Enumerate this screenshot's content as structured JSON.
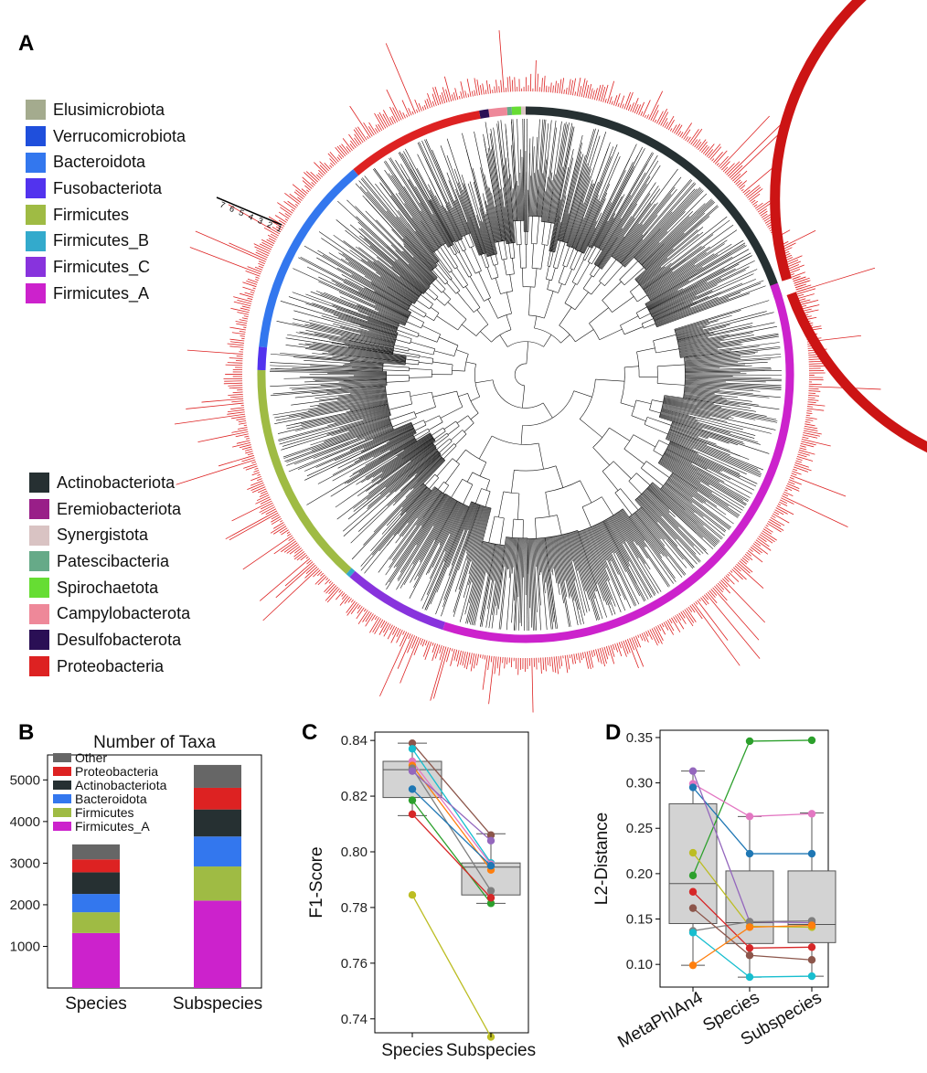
{
  "panel_letters": {
    "a": "A",
    "b": "B",
    "c": "C",
    "d": "D"
  },
  "legend_top": [
    {
      "label": "Elusimicrobiota",
      "color": "#a4ab8e"
    },
    {
      "label": "Verrucomicrobiota",
      "color": "#1f4fdc"
    },
    {
      "label": "Bacteroidota",
      "color": "#3377ee"
    },
    {
      "label": "Fusobacteriota",
      "color": "#5233ee"
    },
    {
      "label": "Firmicutes",
      "color": "#9fbb44"
    },
    {
      "label": "Firmicutes_B",
      "color": "#33aacc"
    },
    {
      "label": "Firmicutes_C",
      "color": "#8833dd"
    },
    {
      "label": "Firmicutes_A",
      "color": "#cc22cc"
    }
  ],
  "legend_bottom": [
    {
      "label": "Actinobacteriota",
      "color": "#263032"
    },
    {
      "label": "Eremiobacteriota",
      "color": "#991f88"
    },
    {
      "label": "Synergistota",
      "color": "#d9c3c3"
    },
    {
      "label": "Patescibacteria",
      "color": "#66aa88"
    },
    {
      "label": "Spirochaetota",
      "color": "#66dd33"
    },
    {
      "label": "Campylobacterota",
      "color": "#ee8899"
    },
    {
      "label": "Desulfobacterota",
      "color": "#2a0f55"
    },
    {
      "label": "Proteobacteria",
      "color": "#dd2222"
    }
  ],
  "tree_scale_ticks": [
    "7",
    "6",
    "5",
    "4",
    "3",
    "2",
    "1"
  ],
  "ring_segments": [
    {
      "phylum": "Actinobacteriota",
      "color": "#263032",
      "start_deg": 17,
      "end_deg": 90
    },
    {
      "phylum": "Synergistota",
      "color": "#d9c3c3",
      "start_deg": 90,
      "end_deg": 91
    },
    {
      "phylum": "Spirochaetota",
      "color": "#66dd33",
      "start_deg": 91,
      "end_deg": 93
    },
    {
      "phylum": "Patescibacteria",
      "color": "#66aa88",
      "start_deg": 93,
      "end_deg": 94
    },
    {
      "phylum": "Campylobacterota",
      "color": "#ee8899",
      "start_deg": 94,
      "end_deg": 98
    },
    {
      "phylum": "Desulfobacterota",
      "color": "#2a0f55",
      "start_deg": 98,
      "end_deg": 100
    },
    {
      "phylum": "Proteobacteria",
      "color": "#dd2222",
      "start_deg": 100,
      "end_deg": 130
    },
    {
      "phylum": "Bacteroidota",
      "color": "#3377ee",
      "start_deg": 130,
      "end_deg": 174
    },
    {
      "phylum": "Fusobacteriota",
      "color": "#5233ee",
      "start_deg": 174,
      "end_deg": 179
    },
    {
      "phylum": "Firmicutes",
      "color": "#9fbb44",
      "start_deg": 179,
      "end_deg": 228
    },
    {
      "phylum": "Firmicutes_B",
      "color": "#33aacc",
      "start_deg": 228,
      "end_deg": 229
    },
    {
      "phylum": "Firmicutes_C",
      "color": "#8833dd",
      "start_deg": 229,
      "end_deg": 252
    },
    {
      "phylum": "Firmicutes_A",
      "color": "#cc22cc",
      "start_deg": 252,
      "end_deg": 380
    }
  ],
  "chart_data": [
    {
      "panel": "B",
      "type": "bar",
      "stacked": true,
      "title": "Number of Taxa",
      "categories": [
        "Species",
        "Subspecies"
      ],
      "series": [
        {
          "name": "Firmicutes_A",
          "color": "#cc22cc",
          "values": [
            1320,
            2100
          ]
        },
        {
          "name": "Firmicutes",
          "color": "#9fbb44",
          "values": [
            500,
            820
          ]
        },
        {
          "name": "Bacteroidota",
          "color": "#3377ee",
          "values": [
            440,
            720
          ]
        },
        {
          "name": "Actinobacteriota",
          "color": "#263032",
          "values": [
            520,
            650
          ]
        },
        {
          "name": "Proteobacteria",
          "color": "#dd2222",
          "values": [
            310,
            520
          ]
        },
        {
          "name": "Other",
          "color": "#666666",
          "values": [
            360,
            550
          ]
        }
      ],
      "yticks": [
        1000,
        2000,
        3000,
        4000,
        5000
      ],
      "ylim": [
        0,
        5600
      ],
      "legend_position": "top-left"
    },
    {
      "panel": "C",
      "type": "box",
      "ylabel": "F1-Score",
      "categories": [
        "Species",
        "Subspecies"
      ],
      "yticks": [
        "0.74",
        "0.76",
        "0.78",
        "0.80",
        "0.82",
        "0.84"
      ],
      "ylim": [
        0.735,
        0.843
      ],
      "box_stats": [
        {
          "category": "Species",
          "min": 0.813,
          "q1": 0.8195,
          "median": 0.8295,
          "q3": 0.8325,
          "max": 0.839
        },
        {
          "category": "Subspecies",
          "min": 0.7815,
          "q1": 0.7845,
          "median": 0.7945,
          "q3": 0.796,
          "max": 0.8065
        }
      ],
      "series": [
        {
          "color": "#8c564b",
          "values": [
            0.839,
            0.806
          ]
        },
        {
          "color": "#17becf",
          "values": [
            0.837,
            0.796
          ]
        },
        {
          "color": "#e377c2",
          "values": [
            0.8325,
            0.7955
          ]
        },
        {
          "color": "#ff7f0e",
          "values": [
            0.831,
            0.7935
          ]
        },
        {
          "color": "#7f7f7f",
          "values": [
            0.83,
            0.786
          ]
        },
        {
          "color": "#9467bd",
          "values": [
            0.829,
            0.804
          ]
        },
        {
          "color": "#1f77b4",
          "values": [
            0.8225,
            0.795
          ]
        },
        {
          "color": "#2ca02c",
          "values": [
            0.8185,
            0.7815
          ]
        },
        {
          "color": "#d62728",
          "values": [
            0.8135,
            0.7835
          ]
        },
        {
          "color": "#bcbd22",
          "values": [
            0.7845,
            0.7335
          ]
        }
      ]
    },
    {
      "panel": "D",
      "type": "box",
      "ylabel": "L2-Distance",
      "categories": [
        "MetaPhlAn4",
        "Species",
        "Subspecies"
      ],
      "yticks": [
        "0.10",
        "0.15",
        "0.20",
        "0.25",
        "0.30",
        "0.35"
      ],
      "ylim": [
        0.075,
        0.358
      ],
      "box_stats": [
        {
          "category": "MetaPhlAn4",
          "min": 0.099,
          "q1": 0.145,
          "median": 0.189,
          "q3": 0.277,
          "max": 0.313
        },
        {
          "category": "Species",
          "min": 0.086,
          "q1": 0.123,
          "median": 0.146,
          "q3": 0.203,
          "max": 0.263
        },
        {
          "category": "Subspecies",
          "min": 0.087,
          "q1": 0.124,
          "median": 0.144,
          "q3": 0.203,
          "max": 0.267
        }
      ],
      "series": [
        {
          "color": "#2ca02c",
          "values": [
            0.198,
            0.346,
            0.347
          ]
        },
        {
          "color": "#e377c2",
          "values": [
            0.299,
            0.263,
            0.266
          ]
        },
        {
          "color": "#1f77b4",
          "values": [
            0.295,
            0.222,
            0.222
          ]
        },
        {
          "color": "#9467bd",
          "values": [
            0.313,
            0.147,
            0.146
          ]
        },
        {
          "color": "#bcbd22",
          "values": [
            0.223,
            0.142,
            0.141
          ]
        },
        {
          "color": "#7f7f7f",
          "values": [
            0.137,
            0.147,
            0.148
          ]
        },
        {
          "color": "#d62728",
          "values": [
            0.18,
            0.118,
            0.119
          ]
        },
        {
          "color": "#8c564b",
          "values": [
            0.162,
            0.11,
            0.105
          ]
        },
        {
          "color": "#17becf",
          "values": [
            0.135,
            0.086,
            0.087
          ]
        },
        {
          "color": "#ff7f0e",
          "values": [
            0.099,
            0.141,
            0.143
          ]
        }
      ]
    }
  ]
}
